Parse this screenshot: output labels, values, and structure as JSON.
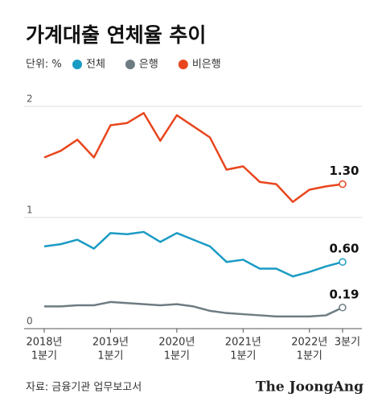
{
  "title": "가계대출 연체율 추이",
  "unit": "단위: %",
  "source": "자료: 금융기관 업무보고서",
  "logo": "The JoongAng",
  "chart_data": {
    "type": "line",
    "categories": [
      [
        "2018년",
        "1분기"
      ],
      null,
      null,
      null,
      [
        "2019년",
        "1분기"
      ],
      null,
      null,
      null,
      [
        "2020년",
        "1분기"
      ],
      null,
      null,
      null,
      [
        "2021년",
        "1분기"
      ],
      null,
      null,
      null,
      [
        "2022년",
        "1분기"
      ],
      null,
      [
        "3분기"
      ]
    ],
    "series": [
      {
        "name": "전체",
        "color": "#1a9bc4",
        "values": [
          0.74,
          0.76,
          0.8,
          0.72,
          0.86,
          0.85,
          0.87,
          0.78,
          0.86,
          0.8,
          0.74,
          0.6,
          0.62,
          0.54,
          0.54,
          0.47,
          0.51,
          0.56,
          0.6
        ],
        "value_labels": [
          null,
          null,
          null,
          null,
          null,
          null,
          null,
          null,
          null,
          null,
          null,
          null,
          null,
          null,
          null,
          null,
          null,
          null,
          "0.60"
        ]
      },
      {
        "name": "은행",
        "color": "#6e7c82",
        "values": [
          0.2,
          0.2,
          0.21,
          0.21,
          0.24,
          0.23,
          0.22,
          0.21,
          0.22,
          0.2,
          0.16,
          0.14,
          0.13,
          0.12,
          0.11,
          0.11,
          0.11,
          0.12,
          0.19
        ],
        "value_labels": [
          null,
          null,
          null,
          null,
          null,
          null,
          null,
          null,
          null,
          null,
          null,
          null,
          null,
          null,
          null,
          null,
          null,
          null,
          "0.19"
        ]
      },
      {
        "name": "비은행",
        "color": "#e8461e",
        "values": [
          1.54,
          1.6,
          1.7,
          1.54,
          1.83,
          1.85,
          1.94,
          1.69,
          1.92,
          1.82,
          1.72,
          1.43,
          1.46,
          1.32,
          1.3,
          1.14,
          1.25,
          1.28,
          1.3
        ],
        "value_labels": [
          null,
          null,
          null,
          null,
          null,
          null,
          null,
          null,
          null,
          null,
          null,
          null,
          null,
          null,
          null,
          null,
          null,
          null,
          "1.30"
        ]
      }
    ],
    "ylim": [
      0,
      2.1
    ],
    "yticks": [
      0,
      1,
      2
    ],
    "grid": true
  }
}
